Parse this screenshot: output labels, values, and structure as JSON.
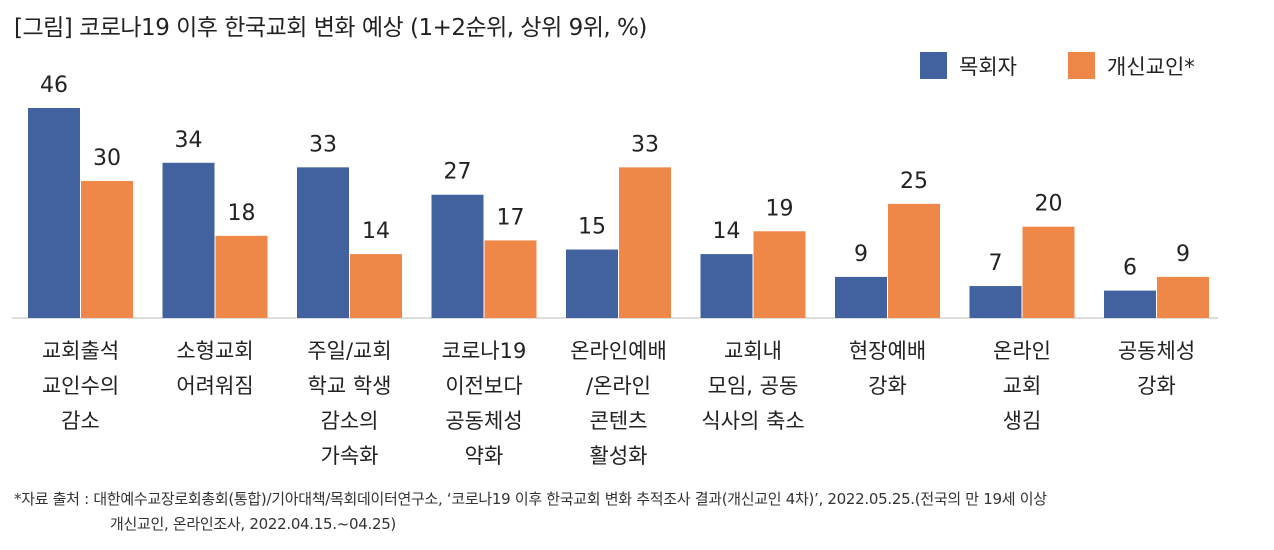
{
  "chart_data": {
    "type": "bar",
    "title": "[그림] 코로나19 이후 한국교회 변화 예상 (1+2순위, 상위 9위, %)",
    "categories": [
      [
        "교회출석",
        "교인수의",
        "감소"
      ],
      [
        "소형교회",
        "어려워짐"
      ],
      [
        "주일/교회",
        "학교 학생",
        "감소의",
        "가속화"
      ],
      [
        "코로나19",
        "이전보다",
        "공동체성",
        "약화"
      ],
      [
        "온라인예배",
        "/온라인",
        "콘텐츠",
        "활성화"
      ],
      [
        "교회내",
        "모임, 공동",
        "식사의 축소"
      ],
      [
        "현장예배",
        "강화"
      ],
      [
        "온라인",
        "교회",
        "생김"
      ],
      [
        "공동체성",
        "강화"
      ]
    ],
    "series": [
      {
        "name": "목회자",
        "color": "#41619f",
        "values": [
          46,
          34,
          33,
          27,
          15,
          14,
          9,
          7,
          6
        ]
      },
      {
        "name": "개신교인*",
        "color": "#ef8749",
        "values": [
          30,
          18,
          14,
          17,
          33,
          19,
          25,
          20,
          9
        ]
      }
    ],
    "ylim": [
      0,
      50
    ],
    "grid": false,
    "legend_position": "top-right"
  },
  "notes": {
    "line1": "*자료 출처 : 대한예수교장로회총회(통합)/기아대책/목회데이터연구소, ‘코로나19 이후 한국교회 변화 추적조사 결과(개신교인 4차)’, 2022.05.25.(전국의 만 19세 이상",
    "line2": "개신교인, 온라인조사,  2022.04.15.~04.25)"
  }
}
